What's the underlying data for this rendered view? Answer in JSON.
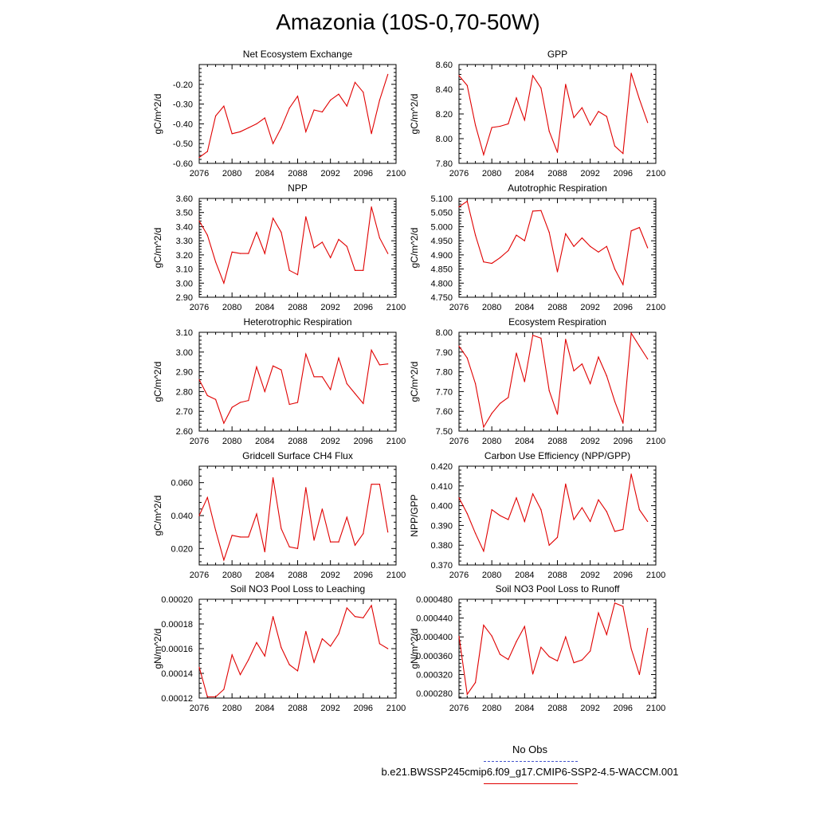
{
  "title": "Amazonia (10S-0,70-50W)",
  "legend": {
    "obs_label": "No Obs",
    "case_label": "b.e21.BWSSP245cmip6.f09_g17.CMIP6-SSP2-4.5-WACCM.001",
    "obs_color": "#4455cc",
    "case_color": "#e00000"
  },
  "chart_data": [
    {
      "type": "line",
      "title": "Net Ecosystem Exchange",
      "xlabel": "",
      "ylabel": "gC/m^2/d",
      "xlim": [
        2076,
        2100
      ],
      "ylim": [
        -0.6,
        -0.1
      ],
      "xticks": [
        2076,
        2080,
        2084,
        2088,
        2092,
        2096,
        2100
      ],
      "xtick_labels": [
        "2076",
        "2080",
        "2084",
        "2088",
        "2092",
        "2096",
        "2100"
      ],
      "yticks": [
        -0.6,
        -0.5,
        -0.4,
        -0.3,
        -0.2
      ],
      "ytick_labels": [
        "-0.60",
        "-0.50",
        "-0.40",
        "-0.30",
        "-0.20"
      ],
      "x": [
        2076,
        2077,
        2078,
        2079,
        2080,
        2081,
        2082,
        2083,
        2084,
        2085,
        2086,
        2087,
        2088,
        2089,
        2090,
        2091,
        2092,
        2093,
        2094,
        2095,
        2096,
        2097,
        2098,
        2099
      ],
      "values": [
        -0.57,
        -0.54,
        -0.36,
        -0.31,
        -0.45,
        -0.44,
        -0.42,
        -0.4,
        -0.37,
        -0.5,
        -0.42,
        -0.32,
        -0.26,
        -0.44,
        -0.33,
        -0.34,
        -0.28,
        -0.25,
        -0.31,
        -0.19,
        -0.24,
        -0.45,
        -0.28,
        -0.15
      ]
    },
    {
      "type": "line",
      "title": "GPP",
      "xlabel": "",
      "ylabel": "gC/m^2/d",
      "xlim": [
        2076,
        2100
      ],
      "ylim": [
        7.8,
        8.6
      ],
      "xticks": [
        2076,
        2080,
        2084,
        2088,
        2092,
        2096,
        2100
      ],
      "xtick_labels": [
        "2076",
        "2080",
        "2084",
        "2088",
        "2092",
        "2096",
        "2100"
      ],
      "yticks": [
        7.8,
        8.0,
        8.2,
        8.4,
        8.6
      ],
      "ytick_labels": [
        "7.80",
        "8.00",
        "8.20",
        "8.40",
        "8.60"
      ],
      "x": [
        2076,
        2077,
        2078,
        2079,
        2080,
        2081,
        2082,
        2083,
        2084,
        2085,
        2086,
        2087,
        2088,
        2089,
        2090,
        2091,
        2092,
        2093,
        2094,
        2095,
        2096,
        2097,
        2098,
        2099
      ],
      "values": [
        8.51,
        8.43,
        8.11,
        7.87,
        8.09,
        8.1,
        8.12,
        8.33,
        8.15,
        8.51,
        8.41,
        8.06,
        7.89,
        8.44,
        8.17,
        8.25,
        8.11,
        8.22,
        8.18,
        7.94,
        7.88,
        8.53,
        8.32,
        8.13
      ]
    },
    {
      "type": "line",
      "title": "NPP",
      "xlabel": "",
      "ylabel": "gC/m^2/d",
      "xlim": [
        2076,
        2100
      ],
      "ylim": [
        2.9,
        3.6
      ],
      "xticks": [
        2076,
        2080,
        2084,
        2088,
        2092,
        2096,
        2100
      ],
      "xtick_labels": [
        "2076",
        "2080",
        "2084",
        "2088",
        "2092",
        "2096",
        "2100"
      ],
      "yticks": [
        2.9,
        3.0,
        3.1,
        3.2,
        3.3,
        3.4,
        3.5,
        3.6
      ],
      "ytick_labels": [
        "2.90",
        "3.00",
        "3.10",
        "3.20",
        "3.30",
        "3.40",
        "3.50",
        "3.60"
      ],
      "x": [
        2076,
        2077,
        2078,
        2079,
        2080,
        2081,
        2082,
        2083,
        2084,
        2085,
        2086,
        2087,
        2088,
        2089,
        2090,
        2091,
        2092,
        2093,
        2094,
        2095,
        2096,
        2097,
        2098,
        2099
      ],
      "values": [
        3.44,
        3.34,
        3.15,
        3.0,
        3.22,
        3.21,
        3.21,
        3.36,
        3.21,
        3.46,
        3.36,
        3.09,
        3.06,
        3.47,
        3.25,
        3.29,
        3.18,
        3.31,
        3.26,
        3.09,
        3.09,
        3.54,
        3.32,
        3.21
      ]
    },
    {
      "type": "line",
      "title": "Autotrophic Respiration",
      "xlabel": "",
      "ylabel": "gC/m^2/d",
      "xlim": [
        2076,
        2100
      ],
      "ylim": [
        4.75,
        5.1
      ],
      "xticks": [
        2076,
        2080,
        2084,
        2088,
        2092,
        2096,
        2100
      ],
      "xtick_labels": [
        "2076",
        "2080",
        "2084",
        "2088",
        "2092",
        "2096",
        "2100"
      ],
      "yticks": [
        4.75,
        4.8,
        4.85,
        4.9,
        4.95,
        5.0,
        5.05,
        5.1
      ],
      "ytick_labels": [
        "4.750",
        "4.800",
        "4.850",
        "4.900",
        "4.950",
        "5.000",
        "5.050",
        "5.100"
      ],
      "x": [
        2076,
        2077,
        2078,
        2079,
        2080,
        2081,
        2082,
        2083,
        2084,
        2085,
        2086,
        2087,
        2088,
        2089,
        2090,
        2091,
        2092,
        2093,
        2094,
        2095,
        2096,
        2097,
        2098,
        2099
      ],
      "values": [
        5.07,
        5.09,
        4.97,
        4.875,
        4.87,
        4.89,
        4.915,
        4.97,
        4.95,
        5.055,
        5.057,
        4.98,
        4.84,
        4.975,
        4.93,
        4.96,
        4.93,
        4.91,
        4.93,
        4.85,
        4.795,
        4.985,
        4.997,
        4.925
      ]
    },
    {
      "type": "line",
      "title": "Heterotrophic Respiration",
      "xlabel": "",
      "ylabel": "gC/m^2/d",
      "xlim": [
        2076,
        2100
      ],
      "ylim": [
        2.6,
        3.1
      ],
      "xticks": [
        2076,
        2080,
        2084,
        2088,
        2092,
        2096,
        2100
      ],
      "xtick_labels": [
        "2076",
        "2080",
        "2084",
        "2088",
        "2092",
        "2096",
        "2100"
      ],
      "yticks": [
        2.6,
        2.7,
        2.8,
        2.9,
        3.0,
        3.1
      ],
      "ytick_labels": [
        "2.60",
        "2.70",
        "2.80",
        "2.90",
        "3.00",
        "3.10"
      ],
      "x": [
        2076,
        2077,
        2078,
        2079,
        2080,
        2081,
        2082,
        2083,
        2084,
        2085,
        2086,
        2087,
        2088,
        2089,
        2090,
        2091,
        2092,
        2093,
        2094,
        2095,
        2096,
        2097,
        2098,
        2099
      ],
      "values": [
        2.86,
        2.78,
        2.76,
        2.64,
        2.72,
        2.745,
        2.755,
        2.925,
        2.8,
        2.93,
        2.91,
        2.735,
        2.745,
        2.99,
        2.875,
        2.875,
        2.81,
        2.97,
        2.84,
        2.79,
        2.74,
        3.01,
        2.935,
        2.94
      ]
    },
    {
      "type": "line",
      "title": "Ecosystem Respiration",
      "xlabel": "",
      "ylabel": "gC/m^2/d",
      "xlim": [
        2076,
        2100
      ],
      "ylim": [
        7.5,
        8.0
      ],
      "xticks": [
        2076,
        2080,
        2084,
        2088,
        2092,
        2096,
        2100
      ],
      "xtick_labels": [
        "2076",
        "2080",
        "2084",
        "2088",
        "2092",
        "2096",
        "2100"
      ],
      "yticks": [
        7.5,
        7.6,
        7.7,
        7.8,
        7.9,
        8.0
      ],
      "ytick_labels": [
        "7.50",
        "7.60",
        "7.70",
        "7.80",
        "7.90",
        "8.00"
      ],
      "x": [
        2076,
        2077,
        2078,
        2079,
        2080,
        2081,
        2082,
        2083,
        2084,
        2085,
        2086,
        2087,
        2088,
        2089,
        2090,
        2091,
        2092,
        2093,
        2094,
        2095,
        2096,
        2097,
        2098,
        2099
      ],
      "values": [
        7.93,
        7.87,
        7.74,
        7.52,
        7.59,
        7.64,
        7.67,
        7.895,
        7.75,
        7.985,
        7.97,
        7.705,
        7.585,
        7.965,
        7.805,
        7.84,
        7.74,
        7.875,
        7.78,
        7.65,
        7.54,
        7.995,
        7.93,
        7.865
      ]
    },
    {
      "type": "line",
      "title": "Gridcell Surface CH4 Flux",
      "xlabel": "",
      "ylabel": "gC/m^2/d",
      "xlim": [
        2076,
        2100
      ],
      "ylim": [
        0.01,
        0.07
      ],
      "xticks": [
        2076,
        2080,
        2084,
        2088,
        2092,
        2096,
        2100
      ],
      "xtick_labels": [
        "2076",
        "2080",
        "2084",
        "2088",
        "2092",
        "2096",
        "2100"
      ],
      "yticks": [
        0.02,
        0.04,
        0.06
      ],
      "ytick_labels": [
        "0.020",
        "0.040",
        "0.060"
      ],
      "x": [
        2076,
        2077,
        2078,
        2079,
        2080,
        2081,
        2082,
        2083,
        2084,
        2085,
        2086,
        2087,
        2088,
        2089,
        2090,
        2091,
        2092,
        2093,
        2094,
        2095,
        2096,
        2097,
        2098,
        2099
      ],
      "values": [
        0.04,
        0.051,
        0.031,
        0.013,
        0.028,
        0.027,
        0.027,
        0.041,
        0.018,
        0.063,
        0.032,
        0.021,
        0.02,
        0.057,
        0.025,
        0.044,
        0.024,
        0.024,
        0.039,
        0.022,
        0.029,
        0.059,
        0.059,
        0.03
      ]
    },
    {
      "type": "line",
      "title": "Carbon Use Efficiency (NPP/GPP)",
      "xlabel": "",
      "ylabel": "NPP/GPP",
      "xlim": [
        2076,
        2100
      ],
      "ylim": [
        0.37,
        0.42
      ],
      "xticks": [
        2076,
        2080,
        2084,
        2088,
        2092,
        2096,
        2100
      ],
      "xtick_labels": [
        "2076",
        "2080",
        "2084",
        "2088",
        "2092",
        "2096",
        "2100"
      ],
      "yticks": [
        0.37,
        0.38,
        0.39,
        0.4,
        0.41,
        0.42
      ],
      "ytick_labels": [
        "0.370",
        "0.380",
        "0.390",
        "0.400",
        "0.410",
        "0.420"
      ],
      "x": [
        2076,
        2077,
        2078,
        2079,
        2080,
        2081,
        2082,
        2083,
        2084,
        2085,
        2086,
        2087,
        2088,
        2089,
        2090,
        2091,
        2092,
        2093,
        2094,
        2095,
        2096,
        2097,
        2098,
        2099
      ],
      "values": [
        0.404,
        0.396,
        0.386,
        0.377,
        0.398,
        0.395,
        0.393,
        0.404,
        0.392,
        0.406,
        0.398,
        0.38,
        0.384,
        0.411,
        0.393,
        0.399,
        0.392,
        0.403,
        0.397,
        0.387,
        0.388,
        0.416,
        0.398,
        0.392
      ]
    },
    {
      "type": "line",
      "title": "Soil NO3 Pool Loss to Leaching",
      "xlabel": "",
      "ylabel": "gN/m^2/d",
      "xlim": [
        2076,
        2100
      ],
      "ylim": [
        0.00012,
        0.0002
      ],
      "xticks": [
        2076,
        2080,
        2084,
        2088,
        2092,
        2096,
        2100
      ],
      "xtick_labels": [
        "2076",
        "2080",
        "2084",
        "2088",
        "2092",
        "2096",
        "2100"
      ],
      "yticks": [
        0.00012,
        0.00014,
        0.00016,
        0.00018,
        0.0002
      ],
      "ytick_labels": [
        "0.00012",
        "0.00014",
        "0.00016",
        "0.00018",
        "0.00020"
      ],
      "x": [
        2076,
        2077,
        2078,
        2079,
        2080,
        2081,
        2082,
        2083,
        2084,
        2085,
        2086,
        2087,
        2088,
        2089,
        2090,
        2091,
        2092,
        2093,
        2094,
        2095,
        2096,
        2097,
        2098,
        2099
      ],
      "values": [
        0.000145,
        0.000121,
        0.000121,
        0.000127,
        0.000155,
        0.000139,
        0.000151,
        0.000165,
        0.000154,
        0.000186,
        0.000161,
        0.000147,
        0.000142,
        0.000174,
        0.000149,
        0.000168,
        0.000162,
        0.000172,
        0.000193,
        0.000186,
        0.000185,
        0.000195,
        0.000164,
        0.00016
      ]
    },
    {
      "type": "line",
      "title": "Soil NO3 Pool Loss to Runoff",
      "xlabel": "",
      "ylabel": "gN/m^2/d",
      "xlim": [
        2076,
        2100
      ],
      "ylim": [
        0.00027,
        0.00048
      ],
      "xticks": [
        2076,
        2080,
        2084,
        2088,
        2092,
        2096,
        2100
      ],
      "xtick_labels": [
        "2076",
        "2080",
        "2084",
        "2088",
        "2092",
        "2096",
        "2100"
      ],
      "yticks": [
        0.00028,
        0.00032,
        0.00036,
        0.0004,
        0.00044,
        0.00048
      ],
      "ytick_labels": [
        "0.000280",
        "0.000320",
        "0.000360",
        "0.000400",
        "0.000440",
        "0.000480"
      ],
      "x": [
        2076,
        2077,
        2078,
        2079,
        2080,
        2081,
        2082,
        2083,
        2084,
        2085,
        2086,
        2087,
        2088,
        2089,
        2090,
        2091,
        2092,
        2093,
        2094,
        2095,
        2096,
        2097,
        2098,
        2099
      ],
      "values": [
        0.000401,
        0.000278,
        0.000303,
        0.000425,
        0.000402,
        0.000363,
        0.000352,
        0.00039,
        0.000422,
        0.000321,
        0.000378,
        0.000358,
        0.000349,
        0.0004,
        0.000345,
        0.000351,
        0.00037,
        0.000451,
        0.000405,
        0.000472,
        0.000465,
        0.000375,
        0.00032,
        0.000418
      ]
    }
  ]
}
